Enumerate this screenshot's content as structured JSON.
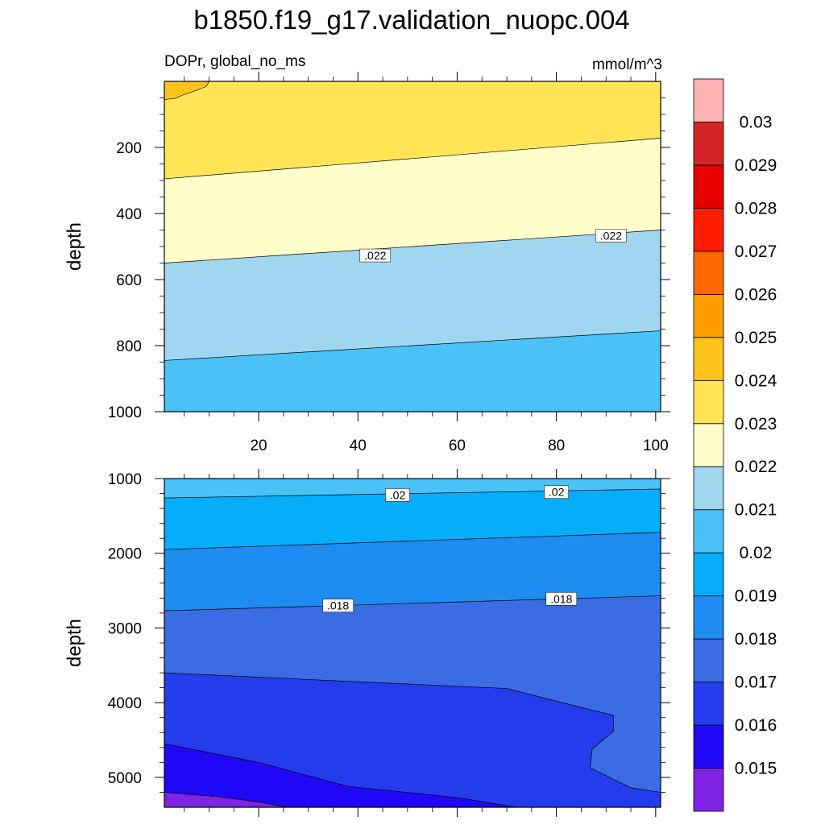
{
  "chart_data": {
    "type": "filled-contour",
    "title": "b1850.f19_g17.validation_nuopc.004",
    "variable_label": "DOPr, global_no_ms",
    "units": "mmol/m^3",
    "colorbar": {
      "levels": [
        0.015,
        0.016,
        0.017,
        0.018,
        0.019,
        0.02,
        0.021,
        0.022,
        0.023,
        0.024,
        0.025,
        0.026,
        0.027,
        0.028,
        0.029,
        0.03
      ],
      "labels": [
        "0.015",
        "0.016",
        "0.017",
        "0.018",
        "0.019",
        "0.02",
        "0.021",
        "0.022",
        "0.023",
        "0.024",
        "0.025",
        "0.026",
        "0.027",
        "0.028",
        "0.029",
        "0.03"
      ],
      "colors": [
        "#7f24e6",
        "#2007f5",
        "#253ced",
        "#3a6ce4",
        "#1e8cf0",
        "#06aefa",
        "#4ac2f7",
        "#a0d6f0",
        "#ffffc9",
        "#ffe556",
        "#ffc41c",
        "#ff9c00",
        "#ff6800",
        "#ff1d00",
        "#e60000",
        "#d42525",
        "#ffb2b3"
      ]
    },
    "panels": [
      {
        "name": "upper",
        "xlim": [
          1,
          101
        ],
        "ylim": [
          1000,
          0
        ],
        "ylabel": "depth",
        "xticks": [
          20,
          40,
          60,
          80,
          100
        ],
        "xtick_labels": [
          "20",
          "40",
          "60",
          "80",
          "100"
        ],
        "yticks": [
          200,
          400,
          600,
          800,
          1000
        ],
        "ytick_labels": [
          "200",
          "400",
          "600",
          "800",
          "1000"
        ],
        "contour_labels": [
          {
            "text": ".022",
            "x": 43.5,
            "y": 527
          },
          {
            "text": ".022",
            "x": 91,
            "y": 467
          }
        ]
      },
      {
        "name": "lower",
        "xlim": [
          1,
          101
        ],
        "ylim": [
          1000,
          5400
        ],
        "ylabel": "depth",
        "xticks": [
          20,
          40,
          60,
          80,
          100
        ],
        "xtick_labels": [],
        "yticks": [
          1000,
          2000,
          3000,
          4000,
          5000
        ],
        "ytick_labels": [
          "1000",
          "2000",
          "3000",
          "4000",
          "5000"
        ],
        "contour_labels": [
          {
            "text": ".02",
            "x": 48,
            "y": 1220
          },
          {
            "text": ".02",
            "x": 80,
            "y": 1180
          },
          {
            "text": ".018",
            "x": 36,
            "y": 2700
          },
          {
            "text": ".018",
            "x": 81,
            "y": 2610
          }
        ]
      }
    ]
  }
}
